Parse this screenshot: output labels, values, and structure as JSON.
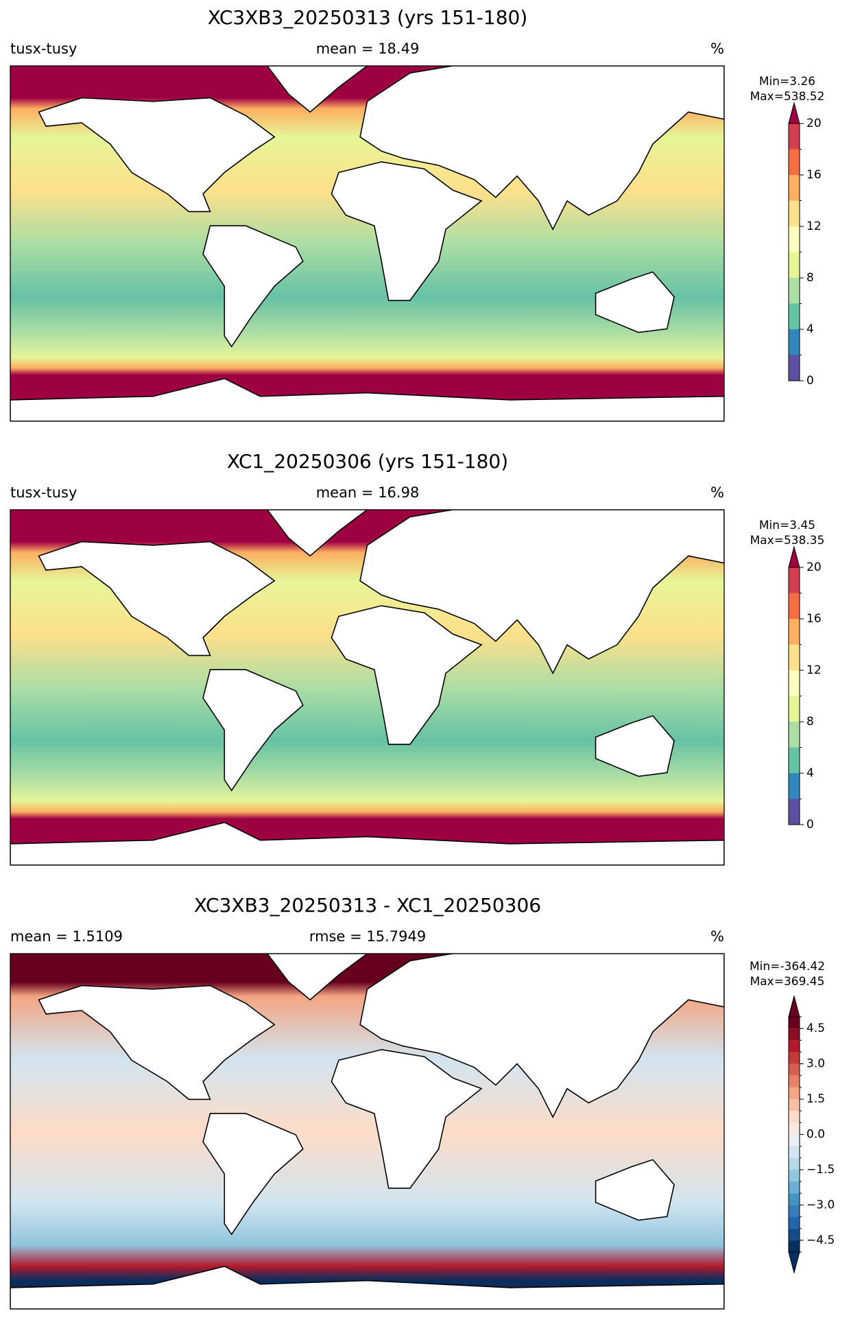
{
  "panels": [
    {
      "title": "XC3XB3_20250313 (yrs 151-180)",
      "left_label": "tusx-tusy",
      "center_label": "mean = 18.49",
      "right_label": "%",
      "colorbar": {
        "min_label": "Min=3.26",
        "max_label": "Max=538.52",
        "extend": "max",
        "levels": [
          0,
          2,
          4,
          6,
          8,
          10,
          12,
          14,
          16,
          18,
          20
        ],
        "colors": [
          "#5e4fa2",
          "#3288bd",
          "#66c2a5",
          "#abdda4",
          "#e6f598",
          "#ffffbf",
          "#fee08b",
          "#fdae61",
          "#f46d43",
          "#d53e4f"
        ],
        "over": "#9e0142",
        "ticks": [
          0,
          4,
          8,
          12,
          16,
          20
        ]
      }
    },
    {
      "title": "XC1_20250306 (yrs 151-180)",
      "left_label": "tusx-tusy",
      "center_label": "mean = 16.98",
      "right_label": "%",
      "colorbar": {
        "min_label": "Min=3.45",
        "max_label": "Max=538.35",
        "extend": "max",
        "levels": [
          0,
          2,
          4,
          6,
          8,
          10,
          12,
          14,
          16,
          18,
          20
        ],
        "colors": [
          "#5e4fa2",
          "#3288bd",
          "#66c2a5",
          "#abdda4",
          "#e6f598",
          "#ffffbf",
          "#fee08b",
          "#fdae61",
          "#f46d43",
          "#d53e4f"
        ],
        "over": "#9e0142",
        "ticks": [
          0,
          4,
          8,
          12,
          16,
          20
        ]
      }
    },
    {
      "title": "XC3XB3_20250313 - XC1_20250306",
      "left_label": "mean = 1.5109",
      "center_label": "rmse = 15.7949",
      "right_label": "%",
      "colorbar": {
        "min_label": "Min=-364.42",
        "max_label": "Max=369.45",
        "extend": "both",
        "levels": [
          -5,
          -4.5,
          -4,
          -3.5,
          -3,
          -2.5,
          -2,
          -1.5,
          -1,
          -0.5,
          0,
          0.5,
          1,
          1.5,
          2,
          2.5,
          3,
          3.5,
          4,
          4.5,
          5
        ],
        "colors": [
          "#053061",
          "#134c87",
          "#2166ac",
          "#3a7bb9",
          "#4393c3",
          "#6aaed3",
          "#92c5de",
          "#b6d7e8",
          "#d1e5f0",
          "#e9f1f6",
          "#f9e8e0",
          "#fddbc7",
          "#f8bfa4",
          "#f4a582",
          "#e58267",
          "#d6604d",
          "#c23a3a",
          "#b2182b",
          "#8c0d25",
          "#67001f"
        ],
        "under": "#053061",
        "over": "#67001f",
        "ticks": [
          {
            "value": -4.5,
            "label": "−4.5"
          },
          {
            "value": -3,
            "label": "−3.0"
          },
          {
            "value": -1.5,
            "label": "−1.5"
          },
          {
            "value": 0,
            "label": "0.0"
          },
          1.5,
          {
            "value": 3,
            "label": "3.0"
          },
          4.5
        ]
      }
    }
  ]
}
